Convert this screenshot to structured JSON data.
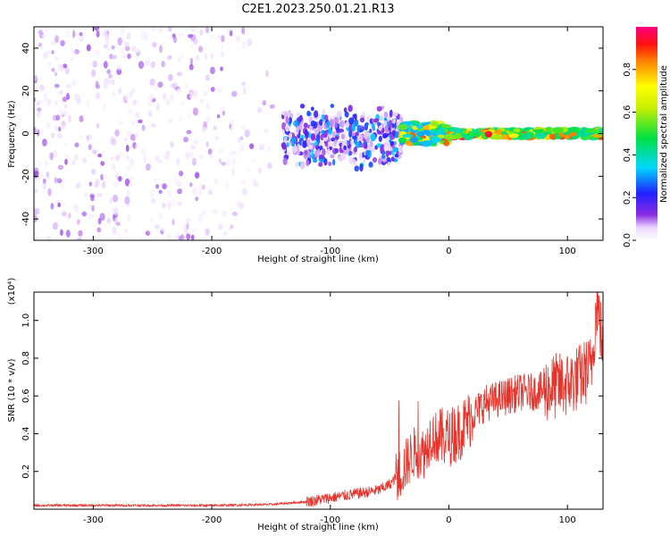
{
  "title": "C2E1.2023.250.01.21.R13",
  "colors": {
    "snr_line": "#e8332b",
    "background": "#ffffff",
    "axis": "#000000"
  },
  "chart_data": [
    {
      "type": "heatmap",
      "xlabel": "Height of straight line (km)",
      "ylabel": "Frequency (Hz)",
      "xlim": [
        -350,
        130
      ],
      "ylim": [
        -50,
        50
      ],
      "x_ticks": [
        -300,
        -200,
        -100,
        0,
        100
      ],
      "x_tick_labels": [
        "-300",
        "-200",
        "-100",
        "0",
        "100"
      ],
      "y_ticks": [
        -40,
        -20,
        0,
        20,
        40
      ],
      "y_tick_labels": [
        "-40",
        "-20",
        "0",
        "20",
        "40"
      ],
      "colorbar": {
        "label": "Normalized spectral amplitude",
        "range": [
          0,
          1
        ],
        "ticks": [
          0.0,
          0.2,
          0.4,
          0.6,
          0.8
        ],
        "tick_labels": [
          "0.0",
          "0.2",
          "0.4",
          "0.6",
          "0.8"
        ],
        "colormap": "rainbow"
      },
      "regions": [
        {
          "x_range": [
            -350,
            -140
          ],
          "freq_range": [
            -50,
            50
          ],
          "amplitude": [
            0.02,
            0.12
          ],
          "density": 0.85
        },
        {
          "x_range": [
            -140,
            -40
          ],
          "freq_range": [
            -15,
            15
          ],
          "amplitude": [
            0.05,
            0.35
          ],
          "density": 0.95
        },
        {
          "x_range": [
            -40,
            0
          ],
          "freq_range": [
            -5,
            5
          ],
          "amplitude": [
            0.3,
            0.9
          ],
          "density": 1.0
        },
        {
          "x_range": [
            0,
            130
          ],
          "freq_range": [
            -2,
            2
          ],
          "amplitude": [
            0.4,
            0.95
          ],
          "density": 1.0
        }
      ]
    },
    {
      "type": "line",
      "xlabel": "Height of straight line (km)",
      "ylabel": "SNR (10 * v/v)",
      "y_multiplier": "(x10⁴)",
      "xlim": [
        -350,
        130
      ],
      "ylim": [
        0,
        1.15
      ],
      "x_ticks": [
        -300,
        -200,
        -100,
        0,
        100
      ],
      "x_tick_labels": [
        "-300",
        "-200",
        "-100",
        "0",
        "100"
      ],
      "y_ticks": [
        0.2,
        0.4,
        0.6,
        0.8,
        1.0
      ],
      "y_tick_labels": [
        "0.2",
        "0.4",
        "0.6",
        "0.8",
        "1.0"
      ],
      "series": [
        {
          "x": [
            -350,
            -300,
            -250,
            -200,
            -150,
            -120,
            -100,
            -80,
            -60,
            -50,
            -40,
            -30,
            -20,
            -15,
            -10,
            0,
            10,
            20,
            30,
            40,
            50,
            60,
            70,
            80,
            90,
            100,
            110,
            120,
            125,
            130
          ],
          "values": [
            0.02,
            0.02,
            0.02,
            0.02,
            0.025,
            0.04,
            0.06,
            0.08,
            0.1,
            0.13,
            0.2,
            0.3,
            0.3,
            0.4,
            0.38,
            0.38,
            0.42,
            0.5,
            0.56,
            0.58,
            0.6,
            0.62,
            0.62,
            0.63,
            0.65,
            0.66,
            0.7,
            0.75,
            1.1,
            0.85
          ]
        }
      ]
    }
  ]
}
